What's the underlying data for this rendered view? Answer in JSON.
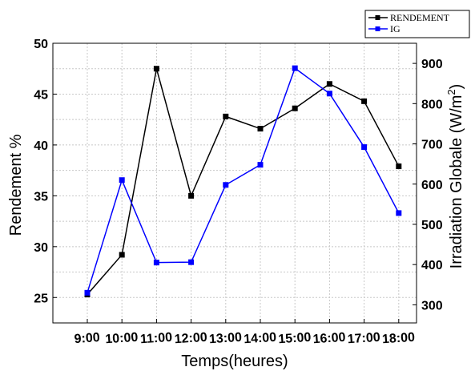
{
  "chart_data": {
    "type": "line",
    "x_categories": [
      "9:00",
      "10:00",
      "11:00",
      "12:00",
      "13:00",
      "14:00",
      "15:00",
      "16:00",
      "17:00",
      "18:00"
    ],
    "xlabel": "Temps(heures)",
    "ylabel_left": "Rendement %",
    "ylabel_right_prefix": "Irradiation Globale (W/m",
    "ylabel_right_sup": "2",
    "ylabel_right_suffix": ")",
    "y_left": {
      "min": 22.5,
      "max": 50,
      "ticks": [
        "25",
        "30",
        "35",
        "40",
        "45",
        "50"
      ],
      "tick_values": [
        25,
        30,
        35,
        40,
        45,
        50
      ]
    },
    "y_right": {
      "min": 255,
      "max": 950,
      "ticks": [
        "300",
        "400",
        "500",
        "600",
        "700",
        "800",
        "900"
      ],
      "tick_values": [
        300,
        400,
        500,
        600,
        700,
        800,
        900
      ]
    },
    "grid": true,
    "legend_position": "top-right",
    "series": [
      {
        "name": "RENDEMENT",
        "axis": "left",
        "color": "#000000",
        "values": [
          25.3,
          29.2,
          47.5,
          35.0,
          42.8,
          41.6,
          43.6,
          46.0,
          44.3,
          37.9
        ]
      },
      {
        "name": "IG",
        "axis": "right",
        "color": "#0000ff",
        "values": [
          330,
          610,
          405,
          406,
          598,
          648,
          888,
          825,
          692,
          528
        ]
      }
    ]
  }
}
